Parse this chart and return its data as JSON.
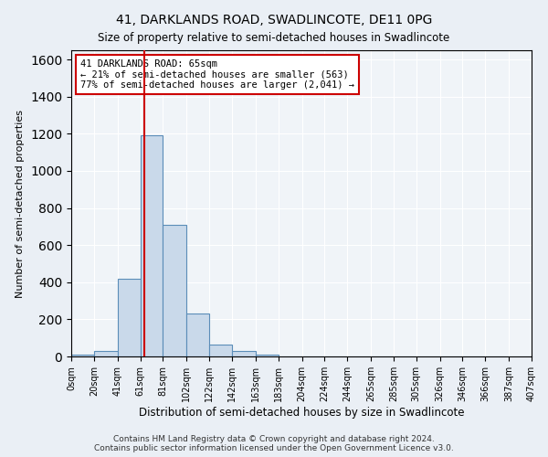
{
  "title1": "41, DARKLANDS ROAD, SWADLINCOTE, DE11 0PG",
  "title2": "Size of property relative to semi-detached houses in Swadlincote",
  "xlabel": "Distribution of semi-detached houses by size in Swadlincote",
  "ylabel": "Number of semi-detached properties",
  "bin_edges": [
    0,
    20,
    41,
    61,
    81,
    102,
    122,
    142,
    163,
    183,
    204,
    224,
    244,
    265,
    285,
    305,
    326,
    346,
    366,
    387,
    407
  ],
  "bar_heights": [
    10,
    30,
    420,
    1190,
    710,
    230,
    65,
    30,
    10,
    0,
    0,
    0,
    0,
    0,
    0,
    0,
    0,
    0,
    0,
    0
  ],
  "bar_color": "#c9d9ea",
  "bar_edge_color": "#5b8db8",
  "property_sqm": 65,
  "annotation_title": "41 DARKLANDS ROAD: 65sqm",
  "annotation_line1": "← 21% of semi-detached houses are smaller (563)",
  "annotation_line2": "77% of semi-detached houses are larger (2,041) →",
  "vline_color": "#cc0000",
  "annotation_box_color": "#cc0000",
  "ylim": [
    0,
    1650
  ],
  "footer1": "Contains HM Land Registry data © Crown copyright and database right 2024.",
  "footer2": "Contains public sector information licensed under the Open Government Licence v3.0.",
  "bg_color": "#eaeff5",
  "plot_bg_color": "#f0f4f8"
}
